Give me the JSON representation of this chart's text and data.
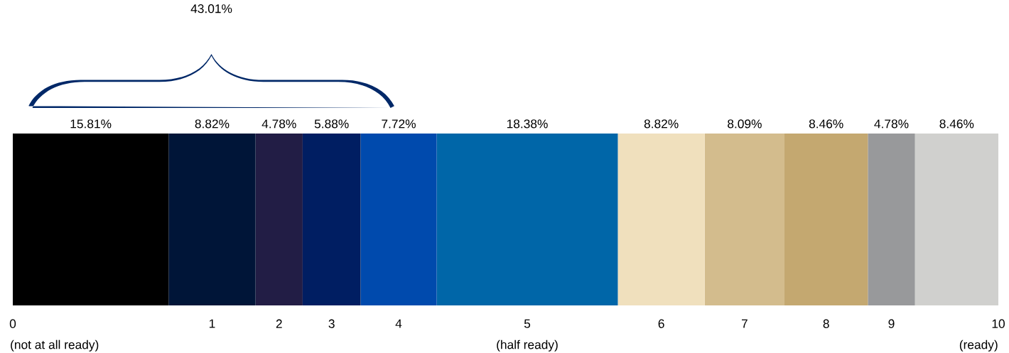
{
  "chart_data": {
    "type": "bar",
    "orientation": "horizontal",
    "stacked": true,
    "categories": [
      null
    ],
    "annotations": [
      "43.01%",
      "(not at all ready)",
      "(half ready)",
      "(ready)"
    ],
    "series": [
      {
        "name": "0",
        "color": "#000000",
        "values": [
          15.81
        ],
        "value_labels": [
          "15.81%"
        ]
      },
      {
        "name": "1",
        "color": "#001538",
        "values": [
          8.82
        ],
        "value_labels": [
          "8.82%"
        ]
      },
      {
        "name": "2",
        "color": "#221d45",
        "values": [
          4.78
        ],
        "value_labels": [
          "4.78%"
        ]
      },
      {
        "name": "3",
        "color": "#001e62",
        "values": [
          5.88
        ],
        "value_labels": [
          "5.88%"
        ]
      },
      {
        "name": "4",
        "color": "#004aad",
        "values": [
          7.72
        ],
        "value_labels": [
          "7.72%"
        ]
      },
      {
        "name": "5",
        "color": "#0066a8",
        "values": [
          18.38
        ],
        "value_labels": [
          "18.38%"
        ]
      },
      {
        "name": "6",
        "color": "#f0e0bd",
        "values": [
          8.82
        ],
        "value_labels": [
          "8.82%"
        ]
      },
      {
        "name": "7",
        "color": "#d3bc8d",
        "values": [
          8.09
        ],
        "value_labels": [
          "8.09%"
        ]
      },
      {
        "name": "8",
        "color": "#c4a870",
        "values": [
          8.46
        ],
        "value_labels": [
          "8.46%"
        ]
      },
      {
        "name": "9",
        "color": "#98999b",
        "values": [
          4.78
        ],
        "value_labels": [
          "4.78%"
        ]
      },
      {
        "name": "10",
        "color": "#d0d0ce",
        "values": [
          8.46
        ],
        "value_labels": [
          "8.46%"
        ]
      }
    ]
  }
}
